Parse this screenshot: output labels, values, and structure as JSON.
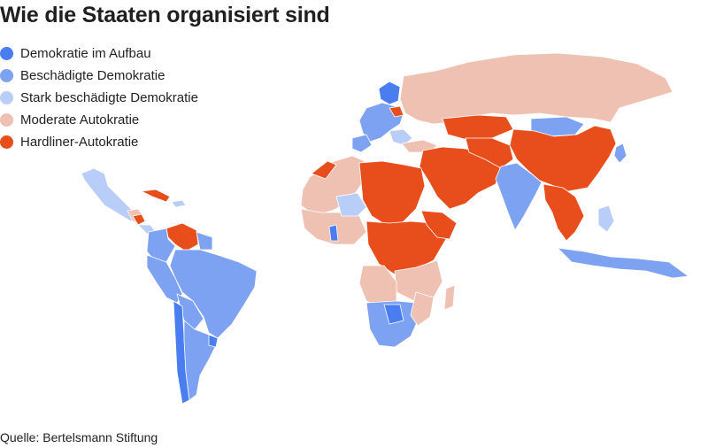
{
  "title": "Wie die Staaten organisiert sind",
  "legend": [
    {
      "label": "Demokratie im Aufbau",
      "color": "#4a7ef0"
    },
    {
      "label": "Beschädigte Demokratie",
      "color": "#7ea2f2"
    },
    {
      "label": "Stark beschädigte Demokratie",
      "color": "#b8cdf7"
    },
    {
      "label": "Moderate Autokratie",
      "color": "#efc1b3"
    },
    {
      "label": "Hardliner-Autokratie",
      "color": "#e84d1c"
    }
  ],
  "source": "Quelle: Bertelsmann Stiftung"
}
